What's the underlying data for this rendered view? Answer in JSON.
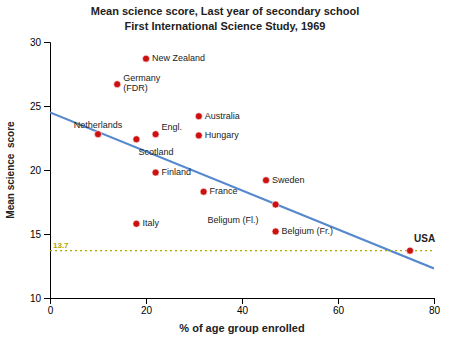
{
  "chart_data": {
    "type": "scatter",
    "title": "Mean science score, Last year of secondary school",
    "subtitle": "First International Science Study, 1969",
    "x_label": "% of age group enrolled",
    "y_label": "Mean science  score",
    "xlim": [
      0,
      80
    ],
    "ylim": [
      10,
      30
    ],
    "xticks": [
      0,
      20,
      40,
      60,
      80
    ],
    "yticks": [
      10,
      15,
      20,
      25,
      30
    ],
    "grid": false,
    "series": [
      {
        "type": "scatter",
        "color": "#cc1111",
        "x": [
          20,
          14,
          31,
          31,
          22,
          10,
          18,
          22,
          32,
          47,
          45,
          18,
          47,
          75
        ],
        "values": [
          28.7,
          26.7,
          24.2,
          22.7,
          22.8,
          22.8,
          22.4,
          19.8,
          18.3,
          17.3,
          19.2,
          15.8,
          15.2,
          13.7
        ],
        "labels": [
          "New Zealand",
          "Germany\n(FDR)",
          "Australia",
          "Hungary",
          "Engl.",
          "Netherlands",
          "Scotland",
          "Finland",
          "France",
          "Beligum (Fl.)",
          "Sweden",
          "Italy",
          "Belgium (Fr.)",
          "USA"
        ]
      },
      {
        "type": "line",
        "color": "#5588cc",
        "x": [
          0,
          80
        ],
        "values": [
          24.5,
          12.3
        ]
      },
      {
        "type": "line",
        "line_style": "dotted",
        "color": "#aaaa00",
        "x": [
          0,
          80
        ],
        "values": [
          13.7,
          13.7
        ]
      }
    ],
    "annotations": [
      {
        "text": "13.7",
        "y": 13.7
      }
    ]
  }
}
